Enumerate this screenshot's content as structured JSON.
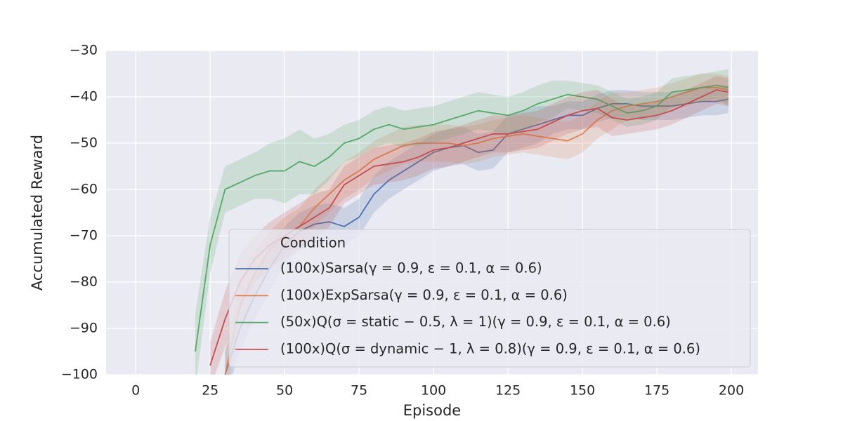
{
  "chart_data": {
    "type": "line",
    "xlabel": "Episode",
    "ylabel": "Accumulated Reward",
    "xlim": [
      -9.95,
      208.95
    ],
    "ylim": [
      -100,
      -30
    ],
    "xticks": [
      0,
      25,
      50,
      75,
      100,
      125,
      150,
      175,
      200
    ],
    "yticks": [
      {
        "value": -100,
        "label": "−100"
      },
      {
        "value": -90,
        "label": "−90"
      },
      {
        "value": -80,
        "label": "−80"
      },
      {
        "value": -70,
        "label": "−70"
      },
      {
        "value": -60,
        "label": "−60"
      },
      {
        "value": -50,
        "label": "−50"
      },
      {
        "value": -40,
        "label": "−40"
      },
      {
        "value": -30,
        "label": "−30"
      }
    ],
    "grid": true,
    "legend_title": "Condition",
    "legend_position": "lower right",
    "x": [
      20,
      25,
      30,
      35,
      40,
      45,
      50,
      55,
      60,
      65,
      70,
      75,
      80,
      85,
      90,
      95,
      100,
      105,
      110,
      115,
      120,
      125,
      130,
      135,
      140,
      145,
      150,
      155,
      160,
      165,
      170,
      175,
      180,
      185,
      190,
      195,
      199
    ],
    "series": [
      {
        "name": "(100x)Sarsa(γ = 0.9, ε = 0.1, α = 0.6)",
        "color": "#4c72b0",
        "values": [
          null,
          null,
          -100,
          -90,
          -83,
          -77,
          -72,
          -69,
          -67.5,
          -67,
          -68,
          -66,
          -61,
          -58,
          -56,
          -54,
          -52,
          -51,
          -50.5,
          -52,
          -51.5,
          -48,
          -47,
          -46,
          -45,
          -44,
          -44,
          -42.5,
          -41.5,
          -41.5,
          -42,
          -42,
          -42,
          -41.5,
          -41,
          -41,
          -40.5
        ],
        "lower": [
          null,
          null,
          -105,
          -95,
          -88,
          -82,
          -76,
          -73,
          -71.5,
          -71,
          -72,
          -70,
          -65,
          -62,
          -60,
          -58,
          -56,
          -55,
          -54.5,
          -56,
          -55.5,
          -52,
          -51,
          -50,
          -48,
          -47,
          -47,
          -45.5,
          -44.5,
          -44.5,
          -45,
          -45,
          -45,
          -44.5,
          -44,
          -44,
          -43.5
        ],
        "upper": [
          null,
          null,
          -95,
          -85,
          -78,
          -72,
          -68,
          -65,
          -63.5,
          -63,
          -64,
          -62,
          -57,
          -54,
          -52,
          -50,
          -48,
          -47,
          -46.5,
          -48,
          -47.5,
          -44,
          -43,
          -42,
          -42,
          -41,
          -41,
          -39.5,
          -38.5,
          -38.5,
          -39,
          -39,
          -39,
          -38.5,
          -38,
          -38,
          -37.5
        ]
      },
      {
        "name": "(100x)ExpSarsa(γ = 0.9, ε = 0.1, α = 0.6)",
        "color": "#dd8452",
        "values": [
          null,
          null,
          -100,
          -85,
          -78,
          -73,
          -70,
          -68,
          -64,
          -61,
          -58,
          -56,
          -53.5,
          -52,
          -50.5,
          -50,
          -50,
          -50,
          -50.5,
          -50,
          -49,
          -48.5,
          -48,
          -48.5,
          -49,
          -49.5,
          -48,
          -45,
          -43,
          -42,
          -41.5,
          -41,
          -40,
          -39,
          -38,
          -38,
          -38.5
        ],
        "lower": [
          null,
          null,
          -105,
          -90,
          -83,
          -77,
          -74,
          -72,
          -68,
          -65,
          -62,
          -60,
          -57.5,
          -56,
          -54.5,
          -54,
          -54,
          -54,
          -54.5,
          -54,
          -53,
          -52.5,
          -52,
          -52.5,
          -53,
          -53.5,
          -52,
          -49,
          -47,
          -45,
          -44.5,
          -44,
          -43,
          -42,
          -41,
          -41,
          -41.5
        ],
        "upper": [
          null,
          null,
          -95,
          -80,
          -73,
          -69,
          -66,
          -64,
          -60,
          -57,
          -54,
          -52,
          -49.5,
          -48,
          -46.5,
          -46,
          -46,
          -46,
          -46.5,
          -46,
          -45,
          -44.5,
          -44,
          -44.5,
          -45,
          -45.5,
          -44,
          -41,
          -39,
          -39,
          -38.5,
          -38,
          -37,
          -36,
          -35,
          -35,
          -35.5
        ]
      },
      {
        "name": "(50x)Q(σ = static − 0.5, λ = 1)(γ = 0.9, ε = 0.1, α = 0.6)",
        "color": "#55a868",
        "values": [
          -95,
          -72,
          -60,
          -58.5,
          -57,
          -56,
          -56,
          -54,
          -55,
          -53,
          -50,
          -49,
          -47,
          -46,
          -47,
          -46.5,
          -46,
          -45,
          -44,
          -43,
          -43.5,
          -44,
          -43,
          -41.5,
          -40.5,
          -39.5,
          -40,
          -40.5,
          -42,
          -43.5,
          -43,
          -42,
          -39,
          -38.5,
          -38,
          -37.5,
          -38
        ],
        "lower": [
          -103,
          -78,
          -65,
          -63.5,
          -62,
          -62,
          -63,
          -61,
          -61,
          -58,
          -54,
          -53,
          -51,
          -50,
          -51,
          -50.5,
          -50,
          -49,
          -48,
          -47,
          -47.5,
          -48,
          -47,
          -45.5,
          -44.5,
          -42.5,
          -43,
          -43.5,
          -45,
          -46.5,
          -46,
          -45,
          -42,
          -41.5,
          -41,
          -40.5,
          -42
        ],
        "upper": [
          -87,
          -66,
          -55,
          -53.5,
          -52,
          -50,
          -49,
          -47,
          -49,
          -48,
          -46,
          -45,
          -43,
          -42,
          -43,
          -42.5,
          -42,
          -41,
          -40,
          -39,
          -39.5,
          -40,
          -39,
          -37.5,
          -36.5,
          -36.5,
          -37,
          -37.5,
          -39,
          -40.5,
          -40,
          -39,
          -36,
          -35.5,
          -35,
          -34.5,
          -34
        ]
      },
      {
        "name": "(100x)Q(σ = dynamic − 1, λ = 0.8)(γ = 0.9, ε = 0.1, α = 0.6)",
        "color": "#c44e52",
        "values": [
          null,
          -98,
          -88,
          -80,
          -75,
          -72,
          -70,
          -68,
          -66,
          -64,
          -59,
          -57,
          -55,
          -54.5,
          -54,
          -53,
          -51.5,
          -51,
          -50,
          -49,
          -48,
          -48,
          -47.5,
          -47,
          -45.5,
          -44,
          -43,
          -42.5,
          -44.5,
          -45,
          -44.5,
          -44,
          -43,
          -41.5,
          -40,
          -38.5,
          -39
        ],
        "lower": [
          null,
          -103,
          -94,
          -86,
          -80,
          -77,
          -75,
          -73,
          -71,
          -68,
          -63,
          -61,
          -59,
          -58.5,
          -58,
          -57,
          -55.5,
          -55,
          -54,
          -53,
          -52,
          -52,
          -51.5,
          -51,
          -49.5,
          -48,
          -47,
          -46.5,
          -48.5,
          -48,
          -47.5,
          -47,
          -46,
          -44.5,
          -43,
          -41.5,
          -42
        ],
        "upper": [
          null,
          -93,
          -82,
          -74,
          -70,
          -67,
          -65,
          -63,
          -61,
          -60,
          -55,
          -53,
          -51,
          -50.5,
          -50,
          -49,
          -47.5,
          -47,
          -46,
          -45,
          -44,
          -44,
          -43.5,
          -43,
          -41.5,
          -40,
          -39,
          -38.5,
          -40.5,
          -42,
          -41.5,
          -41,
          -40,
          -38.5,
          -37,
          -35.5,
          -36
        ]
      }
    ]
  }
}
